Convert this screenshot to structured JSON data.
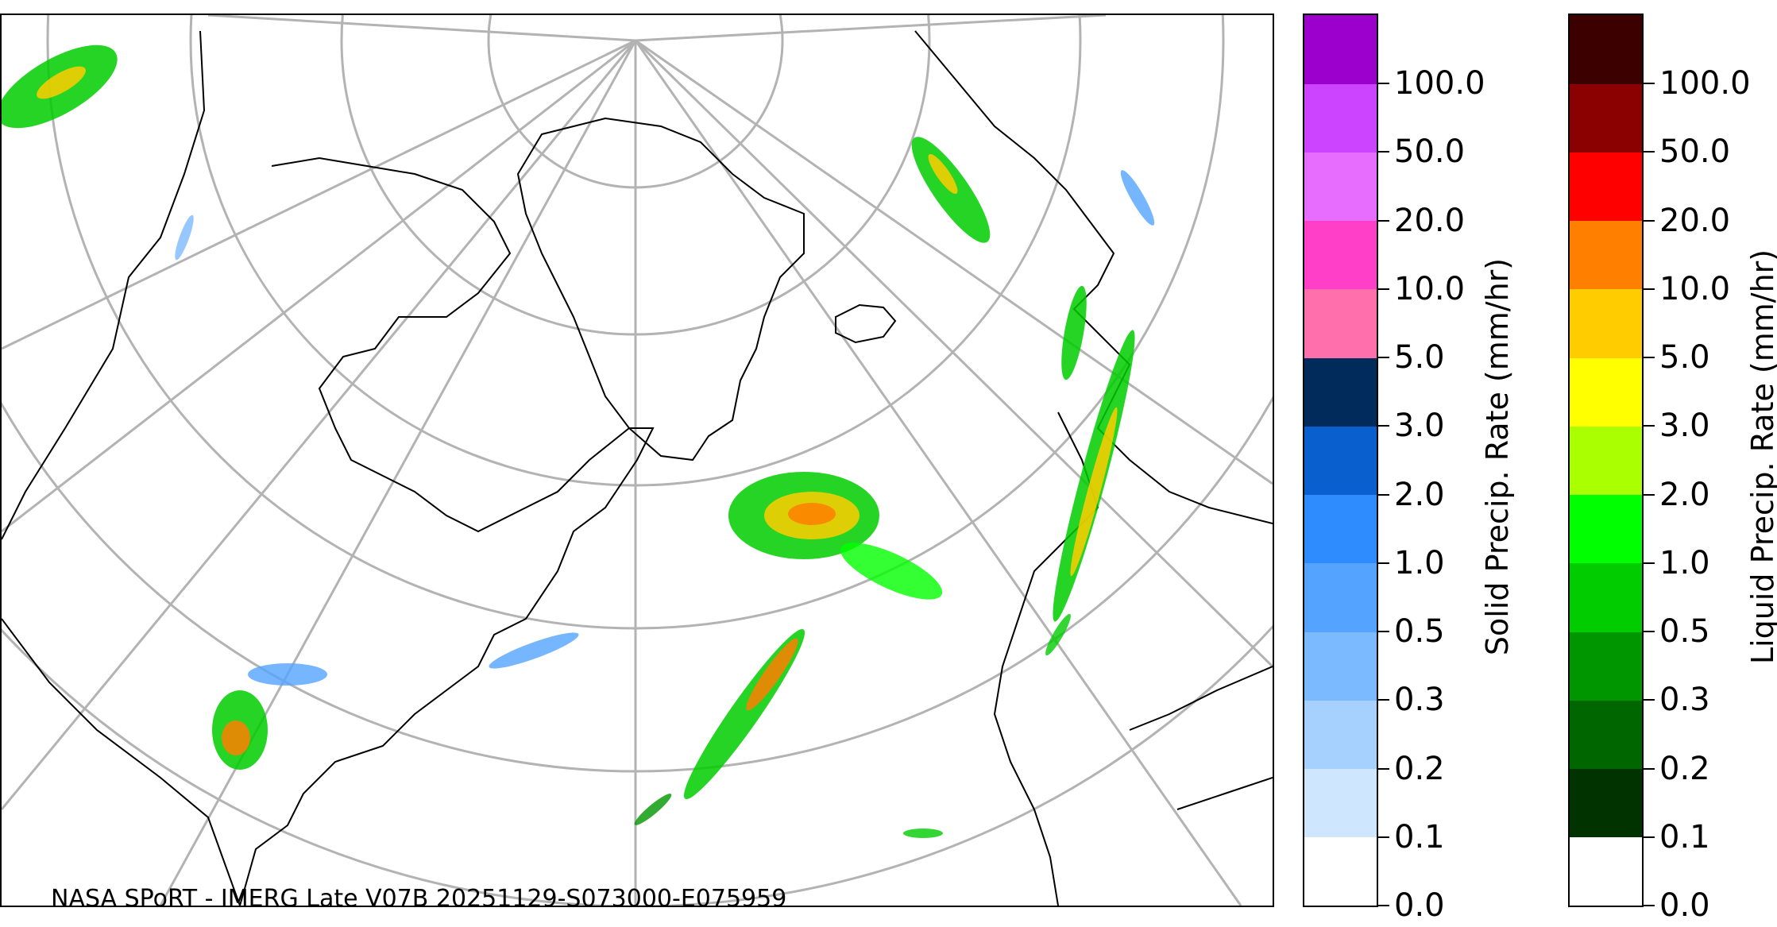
{
  "map": {
    "credit": "NASA SPoRT - IMERG Late V07B 20251129-S073000-E075959",
    "projection": "polar-stereographic",
    "land_outline_color": "#000000",
    "graticule_color": "#b3b3b3"
  },
  "solid_colorbar": {
    "label": "Solid Precip. Rate (mm/hr)",
    "ticks": [
      "0.0",
      "0.1",
      "0.2",
      "0.3",
      "0.5",
      "1.0",
      "2.0",
      "3.0",
      "5.0",
      "10.0",
      "20.0",
      "50.0",
      "100.0"
    ],
    "colors": [
      "#ffffff",
      "#cfe6ff",
      "#a6d1ff",
      "#7cbaff",
      "#54a3ff",
      "#2f8cff",
      "#0a5fce",
      "#002b5b",
      "#ff6fac",
      "#ff3fc8",
      "#e66dff",
      "#cc44ff",
      "#9b00cc"
    ]
  },
  "liquid_colorbar": {
    "label": "Liquid Precip. Rate (mm/hr)",
    "ticks": [
      "0.0",
      "0.1",
      "0.2",
      "0.3",
      "0.5",
      "1.0",
      "2.0",
      "3.0",
      "5.0",
      "10.0",
      "20.0",
      "50.0",
      "100.0"
    ],
    "colors": [
      "#ffffff",
      "#003300",
      "#006600",
      "#009600",
      "#00cc00",
      "#00ff00",
      "#aaff00",
      "#ffff00",
      "#ffcc00",
      "#ff7f00",
      "#ff0000",
      "#8b0000",
      "#3d0000"
    ]
  }
}
